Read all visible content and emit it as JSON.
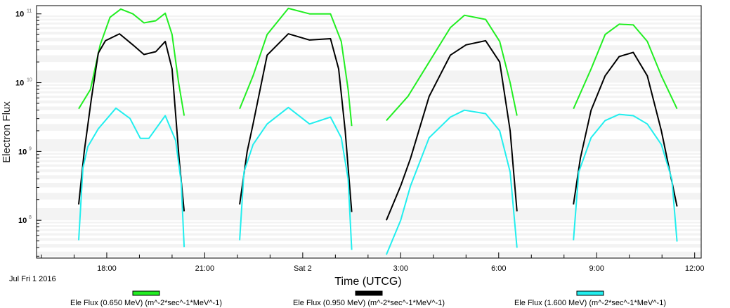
{
  "chart_data": {
    "type": "line",
    "title": "",
    "xlabel": "Time (UTCG)",
    "ylabel": "Electron Flux",
    "x_units": "hours since Jul 1 2016 00:00 UTC",
    "date_label": "Jul Fri 1 2016",
    "xlim": [
      15.85,
      36.2
    ],
    "ylim_log10": [
      7.45,
      11.12
    ],
    "y_scale": "log",
    "x_ticks": [
      {
        "h": 18,
        "label": "18:00"
      },
      {
        "h": 21,
        "label": "21:00"
      },
      {
        "h": 24,
        "label": "Sat 2"
      },
      {
        "h": 27,
        "label": "3:00"
      },
      {
        "h": 30,
        "label": "6:00"
      },
      {
        "h": 33,
        "label": "9:00"
      },
      {
        "h": 36,
        "label": "12:00"
      }
    ],
    "y_ticks": [
      {
        "exp": 11,
        "base": "10",
        "sup": "11"
      },
      {
        "exp": 10,
        "base": "10",
        "sup": "10"
      },
      {
        "exp": 9,
        "base": "10",
        "sup": "9"
      },
      {
        "exp": 8,
        "base": "10",
        "sup": "8"
      }
    ],
    "grid": "horizontal bands",
    "legend_position": "bottom",
    "series": [
      {
        "name": "Ele Flux (0.650 MeV) (m^-2*sec^-1*MeV^-1)",
        "color": "#22ee22",
        "segments": [
          [
            [
              17.14,
              9.62
            ],
            [
              17.5,
              9.9
            ],
            [
              17.8,
              10.55
            ],
            [
              18.1,
              10.95
            ],
            [
              18.43,
              11.07
            ],
            [
              18.8,
              11.0
            ],
            [
              19.14,
              10.87
            ],
            [
              19.5,
              10.9
            ],
            [
              19.79,
              11.01
            ],
            [
              20.0,
              10.7
            ],
            [
              20.2,
              10.0
            ],
            [
              20.37,
              9.52
            ]
          ],
          [
            [
              22.07,
              9.62
            ],
            [
              22.48,
              10.1
            ],
            [
              22.91,
              10.7
            ],
            [
              23.56,
              11.08
            ],
            [
              24.21,
              11.0
            ],
            [
              24.85,
              11.0
            ],
            [
              25.18,
              10.6
            ],
            [
              25.39,
              9.9
            ],
            [
              25.5,
              9.37
            ]
          ],
          [
            [
              26.56,
              9.45
            ],
            [
              27.22,
              9.8
            ],
            [
              27.87,
              10.3
            ],
            [
              28.52,
              10.8
            ],
            [
              28.95,
              10.98
            ],
            [
              29.6,
              10.92
            ],
            [
              30.03,
              10.6
            ],
            [
              30.35,
              10.0
            ],
            [
              30.56,
              9.52
            ]
          ],
          [
            [
              32.29,
              9.62
            ],
            [
              32.83,
              10.2
            ],
            [
              33.26,
              10.7
            ],
            [
              33.69,
              10.85
            ],
            [
              34.12,
              10.84
            ],
            [
              34.55,
              10.6
            ],
            [
              34.98,
              10.1
            ],
            [
              35.46,
              9.62
            ]
          ]
        ]
      },
      {
        "name": "Ele Flux (0.950 MeV) (m^-2*sec^-1*MeV^-1)",
        "color": "#000000",
        "segments": [
          [
            [
              17.14,
              8.23
            ],
            [
              17.31,
              9.0
            ],
            [
              17.53,
              9.77
            ],
            [
              17.74,
              10.43
            ],
            [
              17.96,
              10.61
            ],
            [
              18.39,
              10.71
            ],
            [
              18.8,
              10.55
            ],
            [
              19.14,
              10.41
            ],
            [
              19.5,
              10.45
            ],
            [
              19.79,
              10.6
            ],
            [
              20.0,
              10.2
            ],
            [
              20.22,
              8.87
            ],
            [
              20.37,
              8.13
            ]
          ],
          [
            [
              22.07,
              8.23
            ],
            [
              22.3,
              9.0
            ],
            [
              22.48,
              9.4
            ],
            [
              22.91,
              10.4
            ],
            [
              23.56,
              10.71
            ],
            [
              24.21,
              10.62
            ],
            [
              24.85,
              10.64
            ],
            [
              25.1,
              10.2
            ],
            [
              25.3,
              9.3
            ],
            [
              25.5,
              8.12
            ]
          ],
          [
            [
              26.56,
              8.0
            ],
            [
              27.0,
              8.5
            ],
            [
              27.3,
              8.9
            ],
            [
              27.87,
              9.8
            ],
            [
              28.52,
              10.4
            ],
            [
              29.0,
              10.55
            ],
            [
              29.6,
              10.61
            ],
            [
              30.03,
              10.3
            ],
            [
              30.35,
              9.3
            ],
            [
              30.56,
              8.13
            ]
          ],
          [
            [
              32.29,
              8.23
            ],
            [
              32.5,
              8.9
            ],
            [
              32.83,
              9.6
            ],
            [
              33.26,
              10.1
            ],
            [
              33.69,
              10.38
            ],
            [
              34.12,
              10.44
            ],
            [
              34.55,
              10.1
            ],
            [
              34.98,
              9.3
            ],
            [
              35.46,
              8.2
            ]
          ]
        ]
      },
      {
        "name": "Ele Flux (1.600 MeV) (m^-2*sec^-1*MeV^-1)",
        "color": "#22eeee",
        "segments": [
          [
            [
              17.14,
              7.71
            ],
            [
              17.27,
              8.76
            ],
            [
              17.42,
              9.07
            ],
            [
              17.74,
              9.33
            ],
            [
              18.28,
              9.63
            ],
            [
              18.71,
              9.48
            ],
            [
              19.03,
              9.19
            ],
            [
              19.29,
              9.19
            ],
            [
              19.79,
              9.52
            ],
            [
              20.11,
              9.16
            ],
            [
              20.28,
              8.55
            ],
            [
              20.37,
              7.61
            ]
          ],
          [
            [
              22.07,
              7.71
            ],
            [
              22.2,
              8.7
            ],
            [
              22.48,
              9.1
            ],
            [
              22.91,
              9.4
            ],
            [
              23.56,
              9.64
            ],
            [
              24.21,
              9.4
            ],
            [
              24.85,
              9.5
            ],
            [
              25.18,
              9.2
            ],
            [
              25.39,
              8.6
            ],
            [
              25.5,
              7.57
            ]
          ],
          [
            [
              26.56,
              7.5
            ],
            [
              27.0,
              8.0
            ],
            [
              27.3,
              8.5
            ],
            [
              27.87,
              9.2
            ],
            [
              28.52,
              9.5
            ],
            [
              28.95,
              9.6
            ],
            [
              29.6,
              9.55
            ],
            [
              30.03,
              9.3
            ],
            [
              30.35,
              8.7
            ],
            [
              30.56,
              7.6
            ]
          ],
          [
            [
              32.29,
              7.71
            ],
            [
              32.45,
              8.7
            ],
            [
              32.83,
              9.2
            ],
            [
              33.26,
              9.45
            ],
            [
              33.69,
              9.54
            ],
            [
              34.12,
              9.52
            ],
            [
              34.55,
              9.4
            ],
            [
              34.98,
              9.1
            ],
            [
              35.3,
              8.6
            ],
            [
              35.46,
              7.69
            ]
          ]
        ]
      }
    ]
  }
}
